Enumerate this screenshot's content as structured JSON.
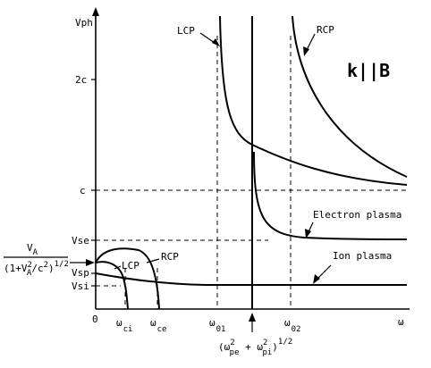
{
  "y_axis_label": "Vph",
  "x_axis_label": "ω",
  "title": "k||B",
  "y_ticks": {
    "two_c": "2c",
    "c": "c",
    "vse": "Vse",
    "vsp": "Vsp",
    "vsi": "Vsi"
  },
  "x_ticks": {
    "zero": "0",
    "omega_ci": {
      "base": "ω",
      "sub": "ci"
    },
    "omega_ce": {
      "base": "ω",
      "sub": "ce"
    },
    "omega_01": {
      "base": "ω",
      "sub": "01"
    },
    "omega_02": {
      "base": "ω",
      "sub": "02"
    }
  },
  "curve_labels": {
    "lcp_top": "LCP",
    "rcp_top": "RCP",
    "lcp_low": "LCP",
    "rcp_low": "RCP",
    "electron_plasma": "Electron plasma",
    "ion_plasma": "Ion plasma"
  },
  "alfven_expr": {
    "numerator": "V",
    "numerator_sub": "A",
    "denom_open": "(1+V",
    "denom_sup": "2",
    "denom_sub": "A",
    "denom_slash": "/c",
    "denom_c_sup": "2",
    "denom_close": ")",
    "denom_exp": "1/2"
  },
  "plasma_freq_expr": {
    "open": "(ω",
    "pe_sup": "2",
    "pe_sub": "pe",
    "plus": " + ω",
    "pi_sup": "2",
    "pi_sub": "pi",
    "close": ")",
    "exp": "1/2"
  }
}
